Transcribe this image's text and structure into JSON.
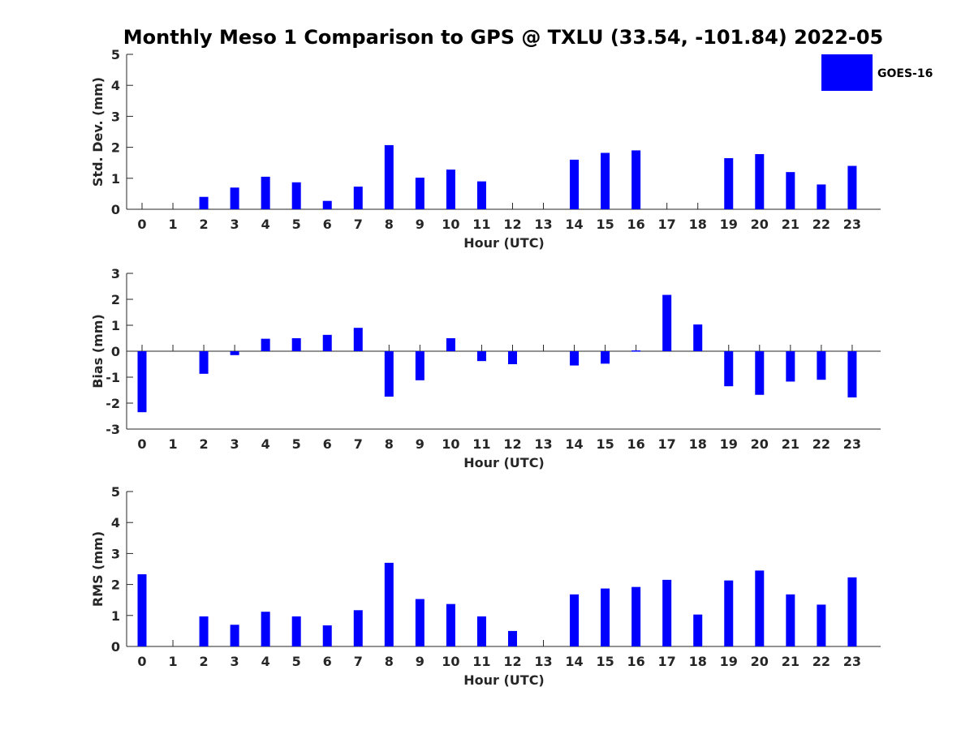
{
  "title": "Monthly Meso 1 Comparison to GPS @ TXLU (33.54, -101.84) 2022-05",
  "legend": {
    "label": "GOES-16",
    "placement": "top-right"
  },
  "bar_color": "#0000ff",
  "chart_data": [
    {
      "type": "bar",
      "xlabel": "Hour (UTC)",
      "ylabel": "Std. Dev. (mm)",
      "ylim": [
        0,
        5
      ],
      "yticks": [
        0,
        1,
        2,
        3,
        4,
        5
      ],
      "categories": [
        "0",
        "1",
        "2",
        "3",
        "4",
        "5",
        "6",
        "7",
        "8",
        "9",
        "10",
        "11",
        "12",
        "13",
        "14",
        "15",
        "16",
        "17",
        "18",
        "19",
        "20",
        "21",
        "22",
        "23"
      ],
      "series": [
        {
          "name": "GOES-16",
          "values": [
            0,
            0,
            0.4,
            0.7,
            1.05,
            0.87,
            0.27,
            0.73,
            2.07,
            1.02,
            1.28,
            0.9,
            0,
            0,
            1.6,
            1.82,
            1.9,
            0,
            0,
            1.65,
            1.78,
            1.2,
            0.8,
            1.4
          ]
        }
      ],
      "grid": false
    },
    {
      "type": "bar",
      "xlabel": "Hour (UTC)",
      "ylabel": "Bias (mm)",
      "ylim": [
        -3,
        3
      ],
      "yticks": [
        -3,
        -2,
        -1,
        0,
        1,
        2,
        3
      ],
      "categories": [
        "0",
        "1",
        "2",
        "3",
        "4",
        "5",
        "6",
        "7",
        "8",
        "9",
        "10",
        "11",
        "12",
        "13",
        "14",
        "15",
        "16",
        "17",
        "18",
        "19",
        "20",
        "21",
        "22",
        "23"
      ],
      "series": [
        {
          "name": "GOES-16",
          "values": [
            -2.35,
            0,
            -0.87,
            -0.15,
            0.48,
            0.5,
            0.63,
            0.9,
            -1.75,
            -1.12,
            0.5,
            -0.38,
            -0.5,
            0,
            -0.55,
            -0.48,
            0.03,
            2.17,
            1.03,
            -1.35,
            -1.68,
            -1.17,
            -1.1,
            -1.78
          ]
        }
      ],
      "grid": false
    },
    {
      "type": "bar",
      "xlabel": "Hour (UTC)",
      "ylabel": "RMS (mm)",
      "ylim": [
        0,
        5
      ],
      "yticks": [
        0,
        1,
        2,
        3,
        4,
        5
      ],
      "categories": [
        "0",
        "1",
        "2",
        "3",
        "4",
        "5",
        "6",
        "7",
        "8",
        "9",
        "10",
        "11",
        "12",
        "13",
        "14",
        "15",
        "16",
        "17",
        "18",
        "19",
        "20",
        "21",
        "22",
        "23"
      ],
      "series": [
        {
          "name": "GOES-16",
          "values": [
            2.33,
            0,
            0.97,
            0.7,
            1.12,
            0.97,
            0.68,
            1.17,
            2.7,
            1.53,
            1.37,
            0.97,
            0.5,
            0,
            1.68,
            1.87,
            1.92,
            2.15,
            1.03,
            2.13,
            2.45,
            1.68,
            1.35,
            2.23
          ]
        }
      ],
      "grid": false
    }
  ]
}
